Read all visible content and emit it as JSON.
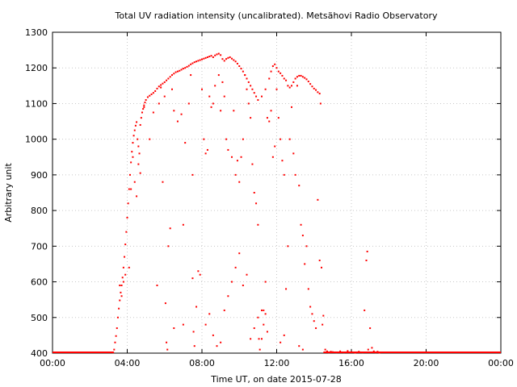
{
  "chart_data": {
    "type": "scatter",
    "title": "Total UV radiation intensity (uncalibrated). Metsähovi Radio Observatory",
    "xlabel": "Time UT, on date 2015-07-28",
    "ylabel": "Arbitrary unit",
    "xlim": [
      0,
      24
    ],
    "ylim": [
      400,
      1300
    ],
    "xticks": [
      0,
      4,
      8,
      12,
      16,
      20,
      24
    ],
    "xtick_labels": [
      "00:00",
      "04:00",
      "08:00",
      "12:00",
      "16:00",
      "20:00",
      "00:00"
    ],
    "yticks": [
      400,
      500,
      600,
      700,
      800,
      900,
      1000,
      1100,
      1200,
      1300
    ],
    "ytick_labels": [
      "400",
      "500",
      "600",
      "700",
      "800",
      "900",
      "1000",
      "1100",
      "1200",
      "1300"
    ],
    "grid": true,
    "series": [
      {
        "color": "#ff0000",
        "marker": "dot",
        "points": [
          [
            3.25,
            402
          ],
          [
            3.3,
            410
          ],
          [
            3.35,
            430
          ],
          [
            3.4,
            448
          ],
          [
            3.45,
            470
          ],
          [
            3.5,
            500
          ],
          [
            3.55,
            525
          ],
          [
            3.6,
            548
          ],
          [
            3.65,
            570
          ],
          [
            3.7,
            590
          ],
          [
            3.75,
            612
          ],
          [
            3.8,
            640
          ],
          [
            3.85,
            670
          ],
          [
            3.9,
            705
          ],
          [
            3.95,
            740
          ],
          [
            4.0,
            780
          ],
          [
            4.05,
            820
          ],
          [
            4.1,
            860
          ],
          [
            4.15,
            900
          ],
          [
            4.2,
            935
          ],
          [
            4.25,
            965
          ],
          [
            4.3,
            990
          ],
          [
            4.35,
            1010
          ],
          [
            4.4,
            1025
          ],
          [
            4.45,
            1038
          ],
          [
            4.5,
            1048
          ],
          [
            4.55,
            1000
          ],
          [
            4.6,
            980
          ],
          [
            4.65,
            960
          ],
          [
            4.7,
            1040
          ],
          [
            4.75,
            1060
          ],
          [
            4.8,
            1075
          ],
          [
            4.85,
            1085
          ],
          [
            4.9,
            1095
          ],
          [
            4.95,
            1103
          ],
          [
            5.0,
            1110
          ],
          [
            5.1,
            1118
          ],
          [
            5.2,
            1122
          ],
          [
            5.3,
            1126
          ],
          [
            5.4,
            1130
          ],
          [
            5.5,
            1135
          ],
          [
            5.6,
            1142
          ],
          [
            5.7,
            1148
          ],
          [
            5.8,
            1152
          ],
          [
            5.9,
            1156
          ],
          [
            6.0,
            1160
          ],
          [
            6.1,
            1165
          ],
          [
            6.2,
            1170
          ],
          [
            6.3,
            1175
          ],
          [
            6.4,
            1180
          ],
          [
            6.5,
            1184
          ],
          [
            6.6,
            1188
          ],
          [
            6.7,
            1190
          ],
          [
            6.8,
            1192
          ],
          [
            6.9,
            1195
          ],
          [
            7.0,
            1198
          ],
          [
            7.1,
            1200
          ],
          [
            7.2,
            1203
          ],
          [
            7.3,
            1206
          ],
          [
            7.4,
            1210
          ],
          [
            7.5,
            1213
          ],
          [
            7.6,
            1216
          ],
          [
            7.7,
            1218
          ],
          [
            7.8,
            1220
          ],
          [
            7.9,
            1222
          ],
          [
            8.0,
            1224
          ],
          [
            8.1,
            1226
          ],
          [
            8.2,
            1228
          ],
          [
            8.3,
            1230
          ],
          [
            8.4,
            1232
          ],
          [
            8.5,
            1234
          ],
          [
            8.6,
            1230
          ],
          [
            8.7,
            1235
          ],
          [
            8.8,
            1238
          ],
          [
            8.9,
            1240
          ],
          [
            9.0,
            1236
          ],
          [
            9.1,
            1225
          ],
          [
            9.2,
            1220
          ],
          [
            9.3,
            1225
          ],
          [
            9.4,
            1228
          ],
          [
            9.5,
            1230
          ],
          [
            9.6,
            1226
          ],
          [
            9.7,
            1222
          ],
          [
            9.8,
            1218
          ],
          [
            9.9,
            1212
          ],
          [
            10.0,
            1205
          ],
          [
            10.1,
            1198
          ],
          [
            10.2,
            1190
          ],
          [
            10.3,
            1180
          ],
          [
            10.4,
            1170
          ],
          [
            10.5,
            1160
          ],
          [
            10.6,
            1150
          ],
          [
            10.7,
            1140
          ],
          [
            10.8,
            1130
          ],
          [
            10.9,
            1120
          ],
          [
            11.0,
            1110
          ],
          [
            11.2,
            1120
          ],
          [
            11.4,
            1140
          ],
          [
            11.6,
            1170
          ],
          [
            11.7,
            1190
          ],
          [
            11.8,
            1205
          ],
          [
            11.9,
            1210
          ],
          [
            12.0,
            1200
          ],
          [
            12.1,
            1190
          ],
          [
            12.2,
            1185
          ],
          [
            12.3,
            1178
          ],
          [
            12.4,
            1170
          ],
          [
            12.5,
            1165
          ],
          [
            12.6,
            1150
          ],
          [
            12.7,
            1145
          ],
          [
            12.8,
            1150
          ],
          [
            12.9,
            1160
          ],
          [
            13.0,
            1170
          ],
          [
            13.1,
            1175
          ],
          [
            13.2,
            1178
          ],
          [
            13.3,
            1178
          ],
          [
            13.4,
            1175
          ],
          [
            13.5,
            1172
          ],
          [
            13.6,
            1168
          ],
          [
            13.7,
            1162
          ],
          [
            13.8,
            1155
          ],
          [
            13.9,
            1148
          ],
          [
            14.0,
            1142
          ],
          [
            14.1,
            1138
          ],
          [
            14.2,
            1132
          ],
          [
            14.3,
            1128
          ],
          [
            14.35,
            1100
          ],
          [
            3.6,
            590
          ],
          [
            3.7,
            560
          ],
          [
            3.8,
            600
          ],
          [
            3.9,
            620
          ],
          [
            4.1,
            640
          ],
          [
            4.2,
            860
          ],
          [
            4.3,
            950
          ],
          [
            4.4,
            880
          ],
          [
            4.5,
            840
          ],
          [
            4.6,
            930
          ],
          [
            4.7,
            905
          ],
          [
            4.9,
            1090
          ],
          [
            5.2,
            1000
          ],
          [
            5.4,
            1075
          ],
          [
            5.6,
            590
          ],
          [
            5.7,
            1100
          ],
          [
            5.8,
            1145
          ],
          [
            5.9,
            880
          ],
          [
            6.0,
            1120
          ],
          [
            6.05,
            540
          ],
          [
            6.1,
            430
          ],
          [
            6.15,
            410
          ],
          [
            6.2,
            700
          ],
          [
            6.3,
            750
          ],
          [
            6.4,
            1140
          ],
          [
            6.5,
            1080
          ],
          [
            6.7,
            1050
          ],
          [
            6.9,
            1070
          ],
          [
            7.0,
            760
          ],
          [
            7.1,
            990
          ],
          [
            7.3,
            1100
          ],
          [
            7.4,
            1180
          ],
          [
            7.5,
            900
          ],
          [
            7.55,
            460
          ],
          [
            7.6,
            420
          ],
          [
            7.7,
            530
          ],
          [
            7.8,
            630
          ],
          [
            8.0,
            1140
          ],
          [
            8.1,
            1000
          ],
          [
            8.2,
            960
          ],
          [
            8.3,
            970
          ],
          [
            8.4,
            1120
          ],
          [
            8.5,
            1090
          ],
          [
            8.6,
            1100
          ],
          [
            8.7,
            1150
          ],
          [
            8.9,
            1180
          ],
          [
            9.0,
            1080
          ],
          [
            9.1,
            1160
          ],
          [
            9.2,
            1120
          ],
          [
            9.3,
            1000
          ],
          [
            9.4,
            970
          ],
          [
            9.6,
            950
          ],
          [
            9.7,
            1080
          ],
          [
            9.8,
            900
          ],
          [
            9.9,
            940
          ],
          [
            10.0,
            880
          ],
          [
            10.1,
            950
          ],
          [
            10.2,
            1000
          ],
          [
            10.3,
            1180
          ],
          [
            10.4,
            1140
          ],
          [
            10.5,
            1100
          ],
          [
            10.6,
            1060
          ],
          [
            10.7,
            930
          ],
          [
            10.8,
            850
          ],
          [
            10.9,
            820
          ],
          [
            11.0,
            760
          ],
          [
            11.05,
            440
          ],
          [
            11.1,
            410
          ],
          [
            11.2,
            440
          ],
          [
            11.3,
            520
          ],
          [
            11.4,
            600
          ],
          [
            11.5,
            1060
          ],
          [
            11.6,
            1050
          ],
          [
            11.7,
            1080
          ],
          [
            11.8,
            950
          ],
          [
            11.9,
            980
          ],
          [
            12.0,
            1140
          ],
          [
            12.1,
            1060
          ],
          [
            12.2,
            1000
          ],
          [
            12.3,
            940
          ],
          [
            12.4,
            900
          ],
          [
            12.5,
            580
          ],
          [
            12.6,
            700
          ],
          [
            12.7,
            1000
          ],
          [
            12.8,
            1090
          ],
          [
            12.9,
            960
          ],
          [
            13.0,
            900
          ],
          [
            13.1,
            1150
          ],
          [
            13.2,
            870
          ],
          [
            13.3,
            760
          ],
          [
            13.4,
            730
          ],
          [
            13.5,
            650
          ],
          [
            13.6,
            700
          ],
          [
            13.7,
            580
          ],
          [
            13.8,
            530
          ],
          [
            13.9,
            510
          ],
          [
            14.0,
            490
          ],
          [
            14.1,
            470
          ],
          [
            14.2,
            830
          ],
          [
            14.3,
            660
          ],
          [
            14.4,
            640
          ],
          [
            14.45,
            480
          ],
          [
            14.5,
            505
          ],
          [
            6.5,
            470
          ],
          [
            7.0,
            480
          ],
          [
            7.5,
            610
          ],
          [
            7.9,
            620
          ],
          [
            8.2,
            480
          ],
          [
            8.4,
            510
          ],
          [
            8.6,
            450
          ],
          [
            8.8,
            420
          ],
          [
            9.0,
            430
          ],
          [
            9.2,
            520
          ],
          [
            9.4,
            560
          ],
          [
            9.6,
            600
          ],
          [
            9.8,
            640
          ],
          [
            10.0,
            680
          ],
          [
            10.2,
            590
          ],
          [
            10.4,
            620
          ],
          [
            10.6,
            440
          ],
          [
            10.8,
            470
          ],
          [
            11.0,
            500
          ],
          [
            11.2,
            520
          ],
          [
            11.3,
            480
          ],
          [
            11.4,
            510
          ],
          [
            11.5,
            460
          ],
          [
            12.2,
            430
          ],
          [
            12.4,
            450
          ],
          [
            13.2,
            420
          ],
          [
            13.4,
            410
          ],
          [
            14.6,
            410
          ],
          [
            14.7,
            405
          ],
          [
            14.8,
            402
          ],
          [
            14.9,
            404
          ],
          [
            15.0,
            403
          ],
          [
            15.2,
            402
          ],
          [
            15.4,
            405
          ],
          [
            15.6,
            402
          ],
          [
            15.8,
            406
          ],
          [
            16.0,
            403
          ],
          [
            16.2,
            401
          ],
          [
            16.4,
            404
          ],
          [
            16.6,
            402
          ],
          [
            16.7,
            520
          ],
          [
            16.8,
            660
          ],
          [
            16.85,
            685
          ],
          [
            16.9,
            410
          ],
          [
            17.0,
            470
          ],
          [
            17.1,
            415
          ],
          [
            17.2,
            405
          ],
          [
            17.3,
            402
          ],
          [
            17.4,
            404
          ],
          [
            17.5,
            401
          ]
        ]
      }
    ]
  }
}
